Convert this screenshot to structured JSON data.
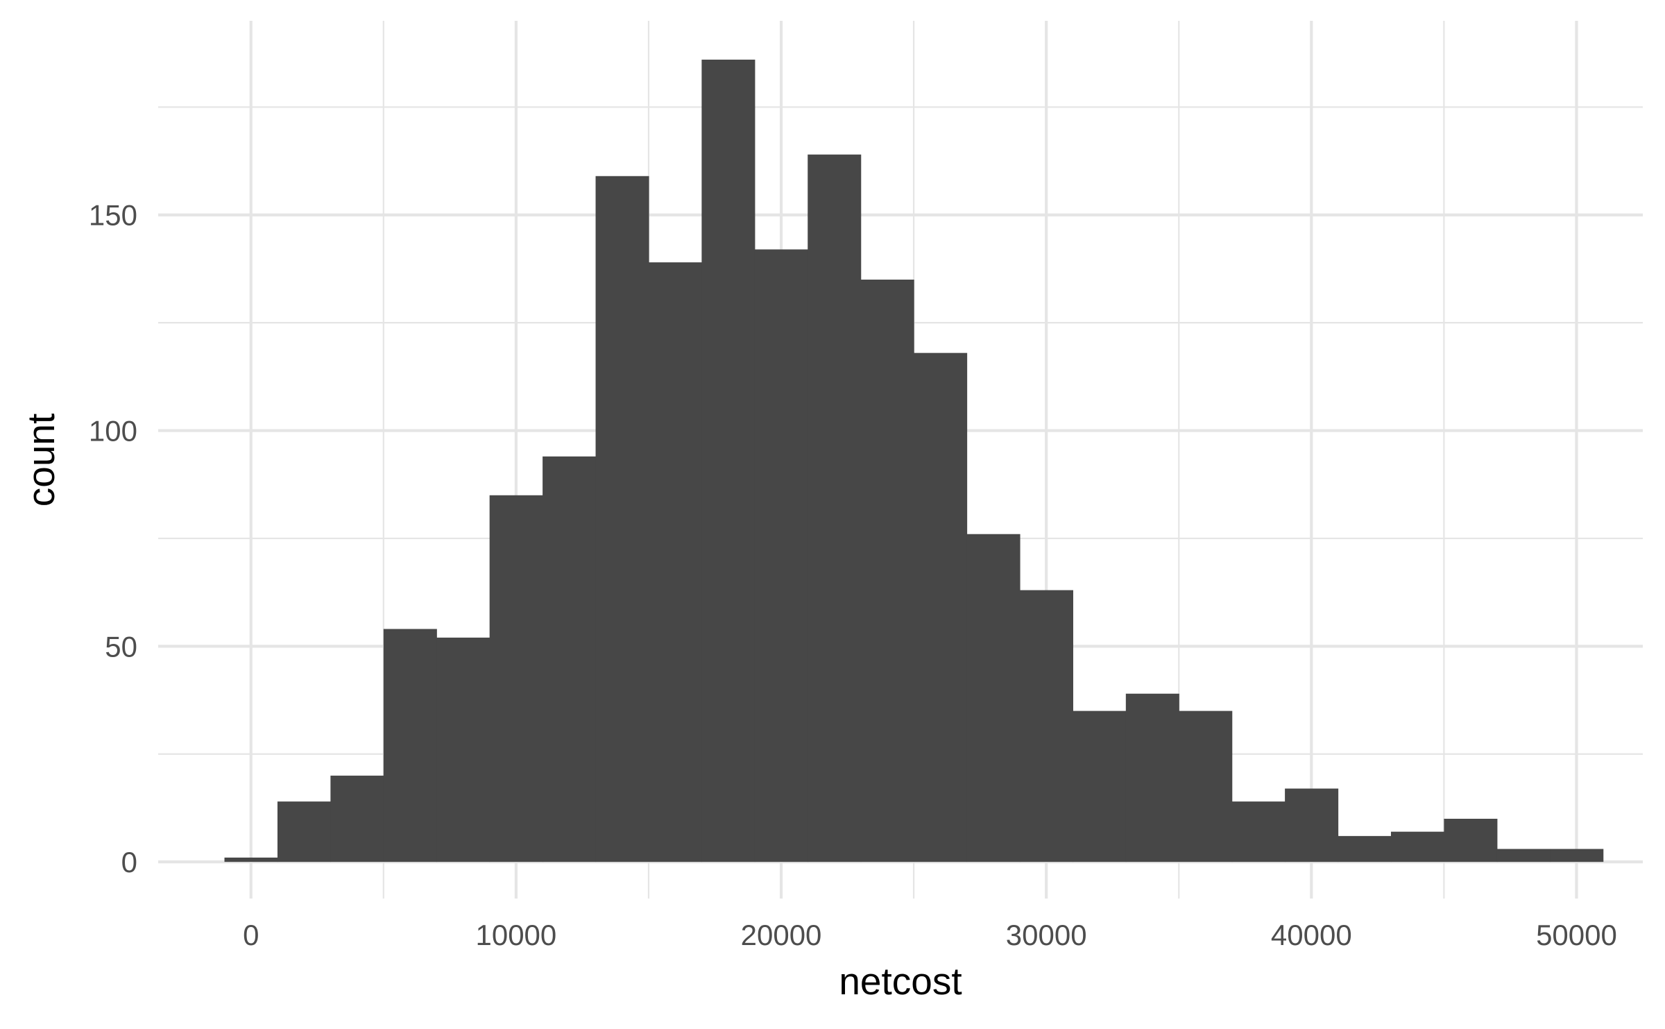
{
  "chart_data": {
    "type": "bar",
    "subtype": "histogram",
    "xlabel": "netcost",
    "ylabel": "count",
    "bin_width": 2000,
    "bins": [
      {
        "x_start": -1000,
        "x_end": 1000,
        "count": 1
      },
      {
        "x_start": 1000,
        "x_end": 3000,
        "count": 14
      },
      {
        "x_start": 3000,
        "x_end": 5000,
        "count": 20
      },
      {
        "x_start": 5000,
        "x_end": 7000,
        "count": 54
      },
      {
        "x_start": 7000,
        "x_end": 9000,
        "count": 52
      },
      {
        "x_start": 9000,
        "x_end": 11000,
        "count": 85
      },
      {
        "x_start": 11000,
        "x_end": 13000,
        "count": 94
      },
      {
        "x_start": 13000,
        "x_end": 15000,
        "count": 159
      },
      {
        "x_start": 15000,
        "x_end": 17000,
        "count": 139
      },
      {
        "x_start": 17000,
        "x_end": 19000,
        "count": 186
      },
      {
        "x_start": 19000,
        "x_end": 21000,
        "count": 142
      },
      {
        "x_start": 21000,
        "x_end": 23000,
        "count": 164
      },
      {
        "x_start": 23000,
        "x_end": 25000,
        "count": 135
      },
      {
        "x_start": 25000,
        "x_end": 27000,
        "count": 118
      },
      {
        "x_start": 27000,
        "x_end": 29000,
        "count": 76
      },
      {
        "x_start": 29000,
        "x_end": 31000,
        "count": 63
      },
      {
        "x_start": 31000,
        "x_end": 33000,
        "count": 35
      },
      {
        "x_start": 33000,
        "x_end": 35000,
        "count": 39
      },
      {
        "x_start": 35000,
        "x_end": 37000,
        "count": 35
      },
      {
        "x_start": 37000,
        "x_end": 39000,
        "count": 14
      },
      {
        "x_start": 39000,
        "x_end": 41000,
        "count": 17
      },
      {
        "x_start": 41000,
        "x_end": 43000,
        "count": 6
      },
      {
        "x_start": 43000,
        "x_end": 45000,
        "count": 7
      },
      {
        "x_start": 45000,
        "x_end": 47000,
        "count": 10
      },
      {
        "x_start": 47000,
        "x_end": 49000,
        "count": 3
      },
      {
        "x_start": 49000,
        "x_end": 51000,
        "count": 3
      }
    ],
    "xlim": [
      -3500,
      52500
    ],
    "ylim": [
      -8.5,
      195
    ],
    "x_ticks": [
      0,
      10000,
      20000,
      30000,
      40000,
      50000
    ],
    "x_tick_labels": [
      "0",
      "10000",
      "20000",
      "30000",
      "40000",
      "50000"
    ],
    "y_ticks": [
      0,
      50,
      100,
      150
    ],
    "y_tick_labels": [
      "0",
      "50",
      "100",
      "150"
    ],
    "grid": true,
    "bar_color": "#474747",
    "grid_color": "#e5e5e5",
    "background_color": "#ffffff"
  }
}
